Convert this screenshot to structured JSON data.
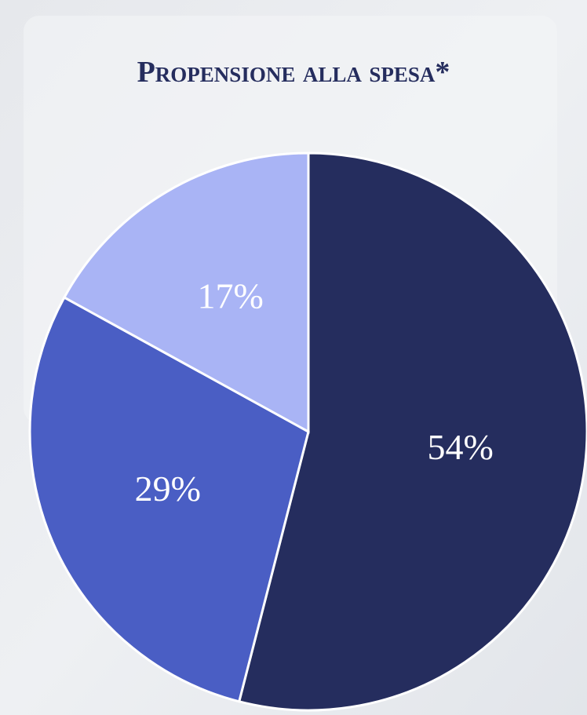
{
  "chart_data": {
    "type": "pie",
    "title": "Propensione alla spesa*",
    "values": [
      54,
      29,
      17
    ],
    "value_labels": [
      "54%",
      "29%",
      "17%"
    ],
    "colors": [
      "#252d5e",
      "#4a5ec4",
      "#a9b4f5"
    ]
  }
}
